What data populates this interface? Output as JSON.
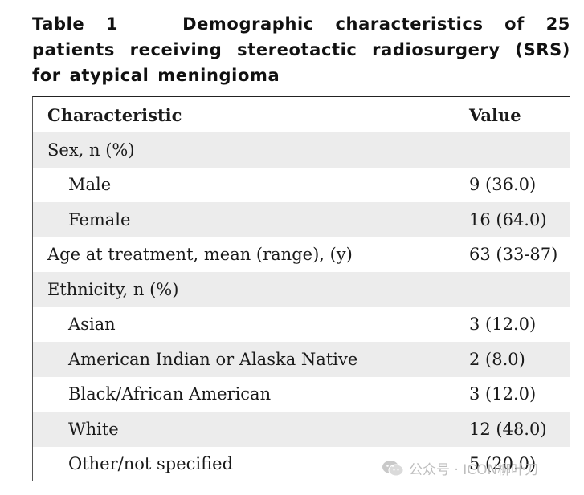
{
  "caption": {
    "label": "Table 1",
    "text": "Demographic characteristics of 25 patients receiving stereotactic radiosurgery (SRS) for atypical meningioma"
  },
  "table": {
    "headers": {
      "characteristic": "Characteristic",
      "value": "Value"
    },
    "rows": [
      {
        "label": "Sex, n (%)",
        "value": ""
      },
      {
        "label": "Male",
        "value": "9 (36.0)"
      },
      {
        "label": "Female",
        "value": "16 (64.0)"
      },
      {
        "label": "Age at treatment, mean (range), (y)",
        "value": "63 (33-87)"
      },
      {
        "label": "Ethnicity, n (%)",
        "value": ""
      },
      {
        "label": "Asian",
        "value": "3 (12.0)"
      },
      {
        "label": "American Indian or Alaska Native",
        "value": "2 (8.0)"
      },
      {
        "label": "Black/African American",
        "value": "3 (12.0)"
      },
      {
        "label": "White",
        "value": "12 (48.0)"
      },
      {
        "label": "Other/not specified",
        "value": "5 (20.0)"
      }
    ]
  },
  "watermark": {
    "icon": "wechat-icon",
    "text": "公众号 · ICON柳叶刀"
  }
}
